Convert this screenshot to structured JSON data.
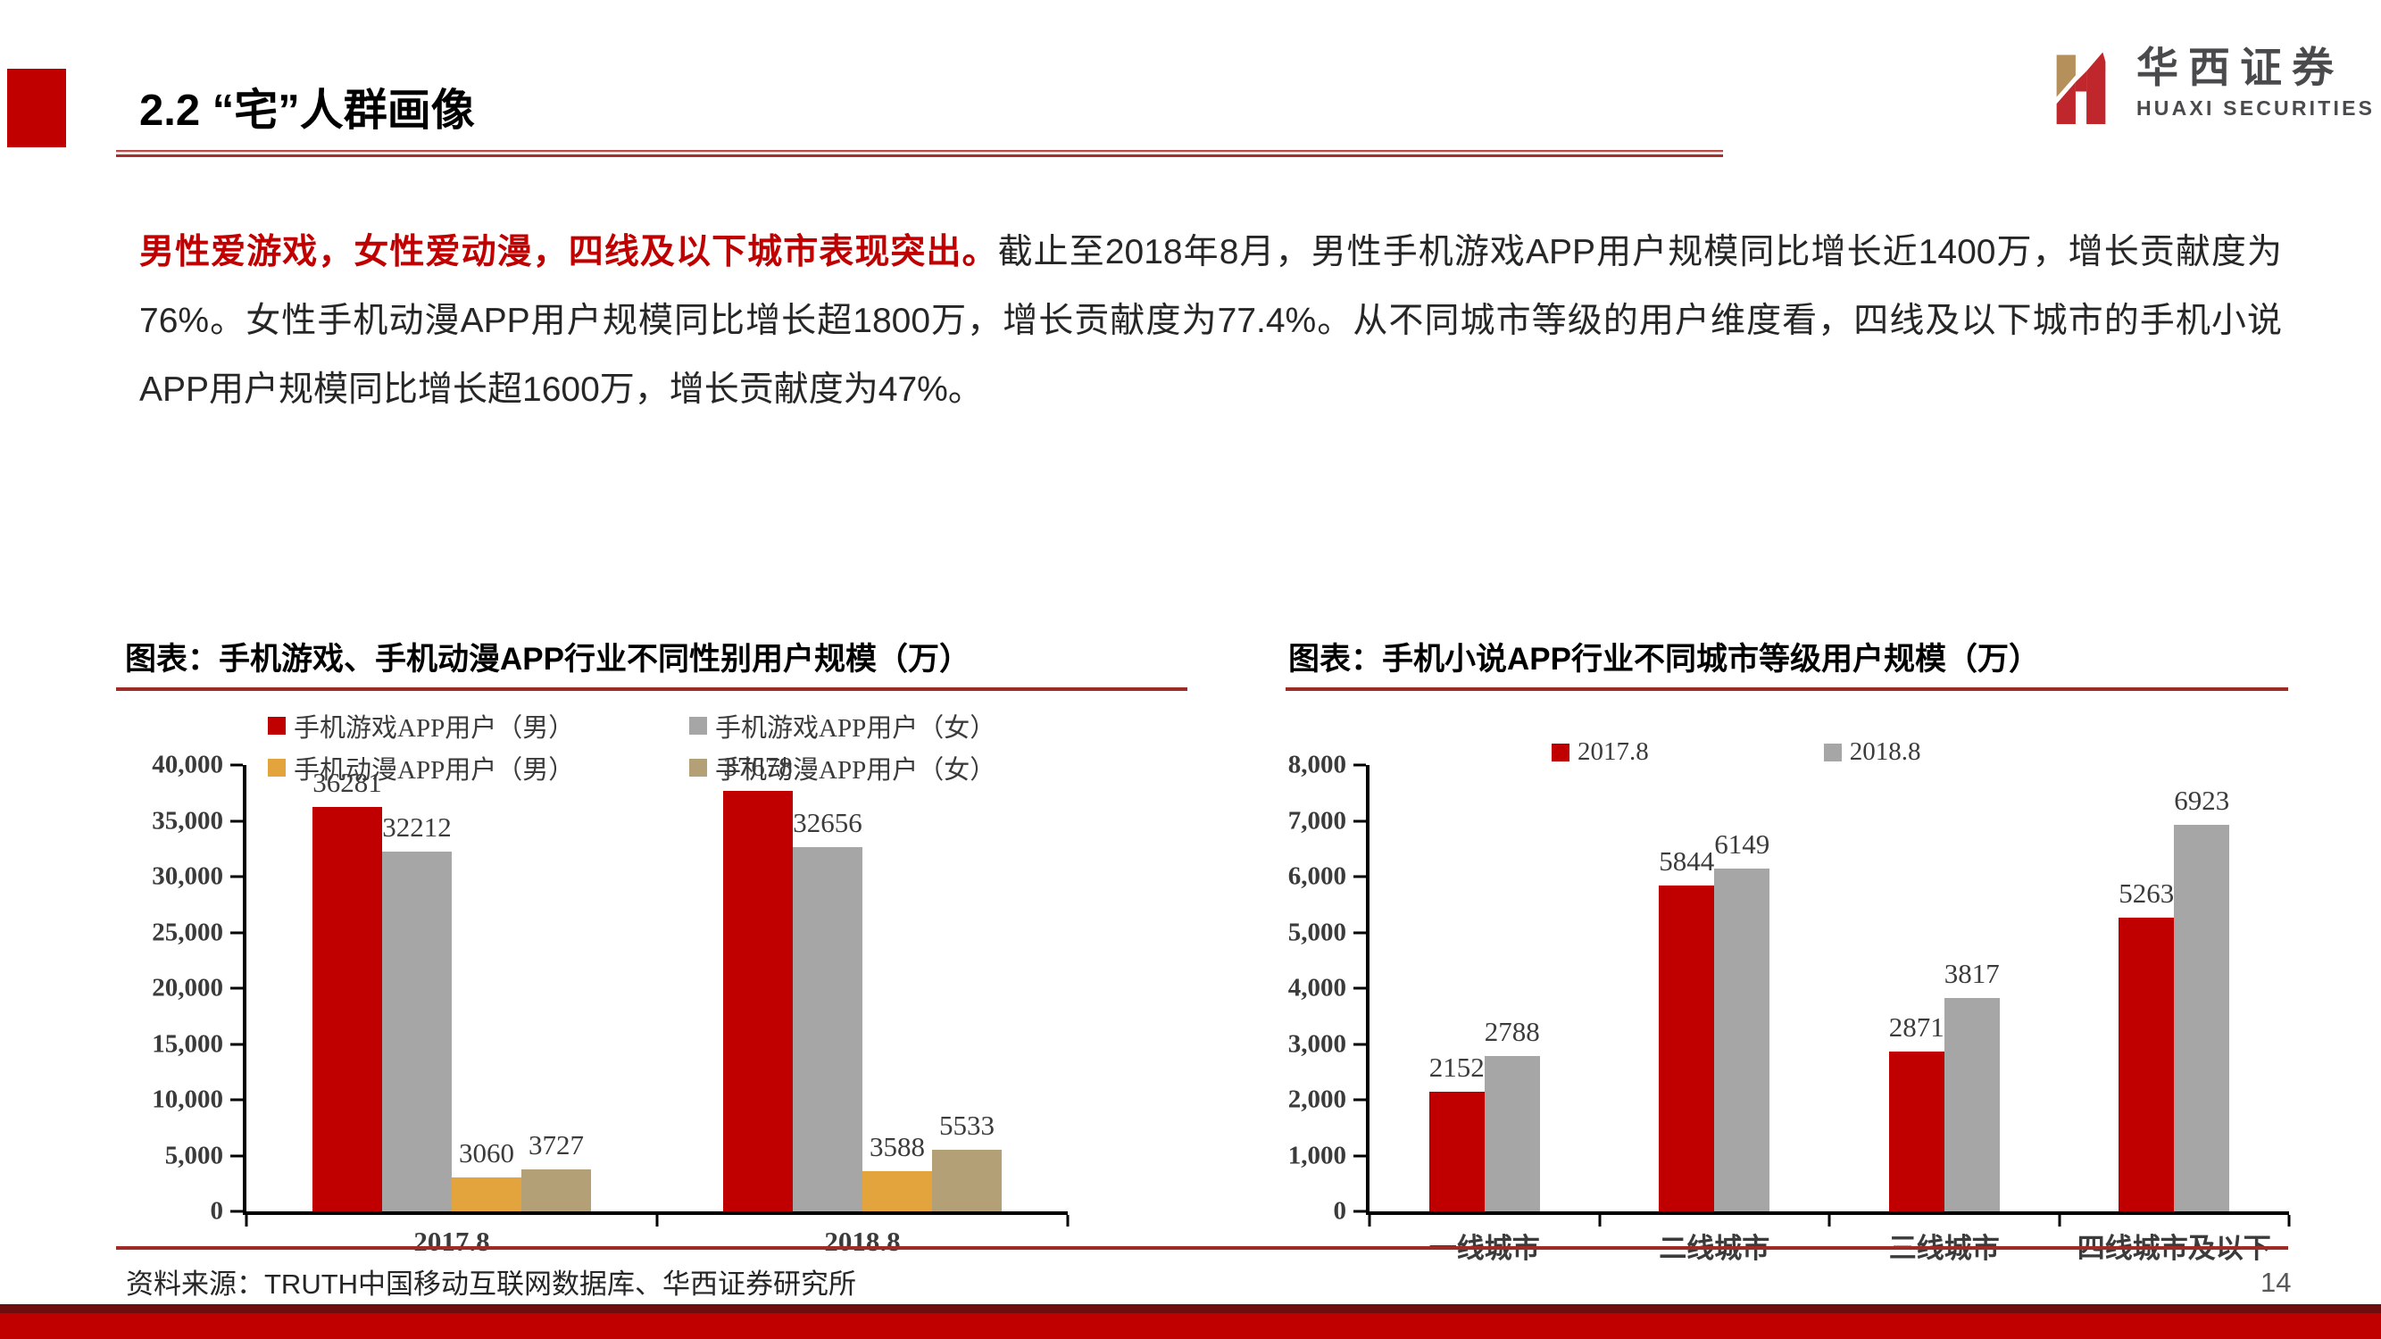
{
  "header": {
    "title": "2.2 “宅”人群画像",
    "logo_cn": "华西证券",
    "logo_en": "HUAXI SECURITIES"
  },
  "body": {
    "lead": "男性爱游戏，女性爱动漫，四线及以下城市表现突出。",
    "text": "截止至2018年8月，男性手机游戏APP用户规模同比增长近1400万，增长贡献度为76%。女性手机动漫APP用户规模同比增长超1800万，增长贡献度为77.4%。从不同城市等级的用户维度看，四线及以下城市的手机小说APP用户规模同比增长超1600万，增长贡献度为47%。"
  },
  "chart_data": [
    {
      "type": "bar",
      "title": "图表：手机游戏、手机动漫APP行业不同性别用户规模（万）",
      "categories": [
        "2017.8",
        "2018.8"
      ],
      "series": [
        {
          "name": "手机游戏APP用户（男）",
          "color": "#C00000",
          "values": [
            36281,
            37678
          ]
        },
        {
          "name": "手机游戏APP用户（女）",
          "color": "#A6A6A6",
          "values": [
            32212,
            32656
          ]
        },
        {
          "name": "手机动漫APP用户（男）",
          "color": "#E3A33D",
          "values": [
            3060,
            3588
          ]
        },
        {
          "name": "手机动漫APP用户（女）",
          "color": "#B4A077",
          "values": [
            3727,
            5533
          ]
        }
      ],
      "ylim": [
        0,
        40000
      ],
      "yticks": [
        "40,000",
        "35,000",
        "30,000",
        "25,000",
        "20,000",
        "15,000",
        "10,000",
        "5,000",
        "0"
      ],
      "legend_position": "top",
      "grid": false
    },
    {
      "type": "bar",
      "title": "图表：手机小说APP行业不同城市等级用户规模（万）",
      "categories": [
        "一线城市",
        "二线城市",
        "三线城市",
        "四线城市及以下"
      ],
      "series": [
        {
          "name": "2017.8",
          "color": "#C00000",
          "values": [
            2152,
            5844,
            2871,
            5263
          ]
        },
        {
          "name": "2018.8",
          "color": "#A6A6A6",
          "values": [
            2788,
            6149,
            3817,
            6923
          ]
        }
      ],
      "ylim": [
        0,
        8000
      ],
      "yticks": [
        "8,000",
        "7,000",
        "6,000",
        "5,000",
        "4,000",
        "3,000",
        "2,000",
        "1,000",
        "0"
      ],
      "legend_position": "top",
      "grid": false
    }
  ],
  "footer": {
    "source": "资料来源：TRUTH中国移动互联网数据库、华西证券研究所",
    "page": "14"
  }
}
